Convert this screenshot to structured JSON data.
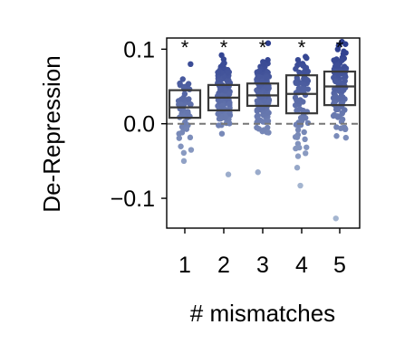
{
  "chart_data": {
    "type": "box-strip",
    "title": "",
    "xlabel": "# mismatches",
    "ylabel": "De-Repression",
    "categories": [
      "1",
      "2",
      "3",
      "4",
      "5"
    ],
    "ylim": [
      -0.14,
      0.115
    ],
    "yticks": [
      {
        "value": 0.1,
        "label": "0.1"
      },
      {
        "value": 0.0,
        "label": "0.0"
      },
      {
        "value": -0.1,
        "label": "−0.1"
      }
    ],
    "reference_line": 0.0,
    "significance_marker": "*",
    "boxes": [
      {
        "category": "1",
        "q1": 0.008,
        "median": 0.022,
        "q3": 0.045,
        "significance": "*"
      },
      {
        "category": "2",
        "q1": 0.018,
        "median": 0.035,
        "q3": 0.052,
        "significance": "*"
      },
      {
        "category": "3",
        "q1": 0.024,
        "median": 0.038,
        "q3": 0.054,
        "significance": "*"
      },
      {
        "category": "4",
        "q1": 0.014,
        "median": 0.04,
        "q3": 0.065,
        "significance": "*"
      },
      {
        "category": "5",
        "q1": 0.025,
        "median": 0.05,
        "q3": 0.07,
        "significance": "*"
      }
    ],
    "point_ranges": [
      {
        "category": "1",
        "min": -0.05,
        "max": 0.08,
        "count": 55
      },
      {
        "category": "2",
        "min": -0.068,
        "max": 0.092,
        "count": 140
      },
      {
        "category": "3",
        "min": -0.065,
        "max": 0.108,
        "count": 160
      },
      {
        "category": "4",
        "min": -0.083,
        "max": 0.09,
        "count": 75
      },
      {
        "category": "5",
        "min": -0.127,
        "max": 0.11,
        "count": 110
      }
    ],
    "colors": {
      "point_high": "#2e3f8f",
      "point_low": "#a4b5d0",
      "box": "#3a3a3a",
      "reference_line": "#777777"
    }
  }
}
